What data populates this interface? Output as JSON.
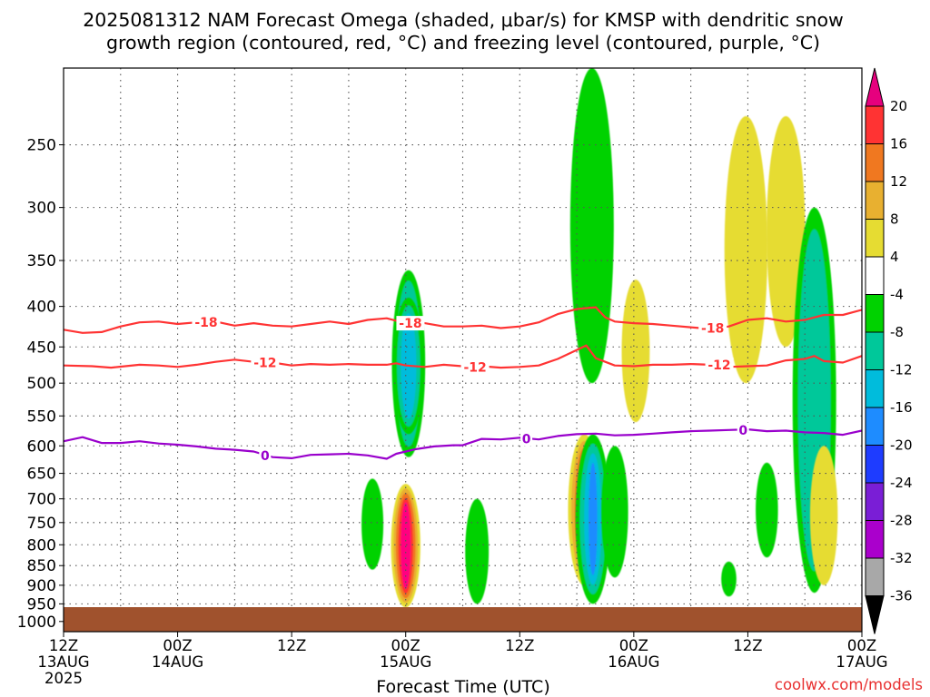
{
  "chart_data": {
    "type": "time-height cross section (filled contour + line contours)",
    "title_lines": [
      "2025081312 NAM Forecast Omega (shaded, μbar/s) for KMSP with dendritic snow",
      "growth region (contoured, red, °C) and freezing level (contoured, purple, °C)"
    ],
    "xlabel": "Forecast Time (UTC)",
    "credit": "coolwx.com/models",
    "x_ticks": [
      {
        "hours": 0,
        "line1": "12Z",
        "line2": "13AUG",
        "line3": "2025"
      },
      {
        "hours": 12,
        "line1": "00Z",
        "line2": "14AUG",
        "line3": ""
      },
      {
        "hours": 24,
        "line1": "12Z",
        "line2": "",
        "line3": ""
      },
      {
        "hours": 36,
        "line1": "00Z",
        "line2": "15AUG",
        "line3": ""
      },
      {
        "hours": 48,
        "line1": "12Z",
        "line2": "",
        "line3": ""
      },
      {
        "hours": 60,
        "line1": "00Z",
        "line2": "16AUG",
        "line3": ""
      },
      {
        "hours": 72,
        "line1": "12Z",
        "line2": "",
        "line3": ""
      },
      {
        "hours": 84,
        "line1": "00Z",
        "line2": "17AUG",
        "line3": ""
      }
    ],
    "xlim_hours": [
      0,
      84
    ],
    "y_axis": {
      "ylabel": "",
      "scale": "log-pressure (inverted)",
      "units": "hPa",
      "ticks": [
        250,
        300,
        350,
        400,
        450,
        500,
        550,
        600,
        650,
        700,
        750,
        800,
        850,
        900,
        950,
        1000
      ],
      "ylim": [
        200,
        1030
      ]
    },
    "grid": true,
    "terrain": {
      "top_hpa": 980,
      "color": "#a0522d"
    },
    "colorbar": {
      "labels": [
        20,
        16,
        12,
        8,
        4,
        -4,
        -8,
        -12,
        -16,
        -20,
        -24,
        -28,
        -32,
        -36
      ],
      "colors": [
        "#ff0080",
        "#ff3333",
        "#f07820",
        "#e8b030",
        "#e6dc32",
        "#ffffff",
        "#00d200",
        "#00c89a",
        "#00bcdc",
        "#1e8cff",
        "#1e3cff",
        "#7a1ed6",
        "#aa00cc",
        "#a8a8a8"
      ],
      "top_arrow_color": "#e6007e",
      "bottom_arrow_color": "#000000"
    },
    "omega_legend_colors": {
      "pos4_8": "#e6dc32",
      "pos8_12": "#e8b030",
      "pos12_16": "#f07820",
      "pos16_20": "#ff3333",
      "pos20": "#ff0080",
      "neg4_8": "#00d200",
      "neg8_12": "#00c89a",
      "neg12_16": "#00bcdc",
      "neg16_20": "#1e8cff"
    },
    "omega_regions": [
      {
        "sign": "negative",
        "strength": -8,
        "center": [
          36.3,
          480
        ],
        "extent_hpa": [
          360,
          620
        ]
      },
      {
        "sign": "negative",
        "strength": -14,
        "center": [
          36.3,
          470
        ],
        "extent_hpa": [
          390,
          580
        ]
      },
      {
        "sign": "negative",
        "strength": -6,
        "center": [
          32.5,
          760
        ],
        "extent_hpa": [
          660,
          860
        ]
      },
      {
        "sign": "positive",
        "strength": 22,
        "center": [
          36.0,
          800
        ],
        "extent_hpa": [
          670,
          960
        ]
      },
      {
        "sign": "negative",
        "strength": -6,
        "center": [
          43.5,
          800
        ],
        "extent_hpa": [
          700,
          950
        ]
      },
      {
        "sign": "negative",
        "strength": -6,
        "center": [
          55.6,
          300
        ],
        "extent_hpa": [
          200,
          500
        ]
      },
      {
        "sign": "positive",
        "strength": 6,
        "center": [
          60.2,
          460
        ],
        "extent_hpa": [
          370,
          560
        ]
      },
      {
        "sign": "positive",
        "strength": 14,
        "center": [
          54.8,
          720
        ],
        "extent_hpa": [
          580,
          900
        ]
      },
      {
        "sign": "negative",
        "strength": -16,
        "center": [
          55.7,
          760
        ],
        "extent_hpa": [
          580,
          950
        ]
      },
      {
        "sign": "negative",
        "strength": -6,
        "center": [
          58.0,
          760
        ],
        "extent_hpa": [
          600,
          880
        ]
      },
      {
        "sign": "positive",
        "strength": 5,
        "center": [
          71.8,
          370
        ],
        "extent_hpa": [
          230,
          500
        ]
      },
      {
        "sign": "positive",
        "strength": 5,
        "center": [
          76.0,
          300
        ],
        "extent_hpa": [
          230,
          450
        ]
      },
      {
        "sign": "negative",
        "strength": -8,
        "center": [
          79.0,
          480
        ],
        "extent_hpa": [
          300,
          920
        ]
      },
      {
        "sign": "negative",
        "strength": -6,
        "center": [
          74.0,
          700
        ],
        "extent_hpa": [
          630,
          830
        ]
      },
      {
        "sign": "negative",
        "strength": -6,
        "center": [
          70.0,
          880
        ],
        "extent_hpa": [
          840,
          930
        ]
      },
      {
        "sign": "positive",
        "strength": 5,
        "center": [
          80.0,
          750
        ],
        "extent_hpa": [
          600,
          900
        ]
      }
    ],
    "temperature_contours": [
      {
        "level": -18,
        "label": "-18",
        "color": "#ff3333",
        "points": [
          [
            0,
            428
          ],
          [
            2,
            432
          ],
          [
            4,
            431
          ],
          [
            6,
            424
          ],
          [
            8,
            419
          ],
          [
            10,
            418
          ],
          [
            12,
            421
          ],
          [
            14,
            419
          ],
          [
            16,
            418
          ],
          [
            18,
            423
          ],
          [
            20,
            420
          ],
          [
            22,
            423
          ],
          [
            24,
            424
          ],
          [
            26,
            421
          ],
          [
            28,
            418
          ],
          [
            30,
            421
          ],
          [
            32,
            416
          ],
          [
            34,
            414
          ],
          [
            35,
            417
          ],
          [
            36,
            414
          ],
          [
            38,
            420
          ],
          [
            40,
            424
          ],
          [
            42,
            424
          ],
          [
            44,
            423
          ],
          [
            46,
            426
          ],
          [
            48,
            424
          ],
          [
            50,
            419
          ],
          [
            52,
            409
          ],
          [
            54,
            403
          ],
          [
            56,
            401
          ],
          [
            57,
            413
          ],
          [
            58,
            418
          ],
          [
            60,
            420
          ],
          [
            62,
            421
          ],
          [
            64,
            423
          ],
          [
            66,
            425
          ],
          [
            68,
            427
          ],
          [
            70,
            424
          ],
          [
            72,
            416
          ],
          [
            74,
            414
          ],
          [
            76,
            418
          ],
          [
            78,
            416
          ],
          [
            80,
            410
          ],
          [
            82,
            410
          ],
          [
            84,
            404
          ]
        ]
      },
      {
        "level": -12,
        "label": "-12",
        "color": "#ff3333",
        "points": [
          [
            0,
            475
          ],
          [
            3,
            476
          ],
          [
            5,
            478
          ],
          [
            8,
            474
          ],
          [
            10,
            475
          ],
          [
            12,
            477
          ],
          [
            14,
            474
          ],
          [
            16,
            470
          ],
          [
            18,
            467
          ],
          [
            20,
            470
          ],
          [
            22,
            471
          ],
          [
            24,
            475
          ],
          [
            26,
            473
          ],
          [
            28,
            474
          ],
          [
            30,
            473
          ],
          [
            32,
            474
          ],
          [
            34,
            474
          ],
          [
            35,
            472
          ],
          [
            36,
            475
          ],
          [
            38,
            477
          ],
          [
            40,
            474
          ],
          [
            42,
            476
          ],
          [
            44,
            476
          ],
          [
            46,
            478
          ],
          [
            48,
            477
          ],
          [
            50,
            475
          ],
          [
            52,
            466
          ],
          [
            54,
            454
          ],
          [
            55,
            448
          ],
          [
            56,
            465
          ],
          [
            58,
            475
          ],
          [
            60,
            476
          ],
          [
            62,
            474
          ],
          [
            64,
            474
          ],
          [
            66,
            473
          ],
          [
            68,
            474
          ],
          [
            70,
            477
          ],
          [
            72,
            476
          ],
          [
            74,
            475
          ],
          [
            76,
            468
          ],
          [
            78,
            466
          ],
          [
            79,
            462
          ],
          [
            80,
            469
          ],
          [
            82,
            471
          ],
          [
            84,
            462
          ]
        ]
      },
      {
        "level": 0,
        "label": "0",
        "color": "#9900cc",
        "points": [
          [
            0,
            592
          ],
          [
            2,
            585
          ],
          [
            4,
            595
          ],
          [
            6,
            595
          ],
          [
            8,
            592
          ],
          [
            10,
            596
          ],
          [
            12,
            598
          ],
          [
            14,
            601
          ],
          [
            16,
            605
          ],
          [
            18,
            607
          ],
          [
            20,
            610
          ],
          [
            22,
            620
          ],
          [
            24,
            622
          ],
          [
            26,
            616
          ],
          [
            28,
            615
          ],
          [
            30,
            614
          ],
          [
            32,
            617
          ],
          [
            34,
            623
          ],
          [
            35,
            614
          ],
          [
            37,
            606
          ],
          [
            39,
            601
          ],
          [
            41,
            599
          ],
          [
            42,
            599
          ],
          [
            44,
            588
          ],
          [
            46,
            589
          ],
          [
            48,
            586
          ],
          [
            50,
            589
          ],
          [
            52,
            583
          ],
          [
            54,
            580
          ],
          [
            56,
            579
          ],
          [
            58,
            582
          ],
          [
            60,
            581
          ],
          [
            62,
            579
          ],
          [
            64,
            577
          ],
          [
            66,
            575
          ],
          [
            68,
            574
          ],
          [
            70,
            573
          ],
          [
            72,
            572
          ],
          [
            74,
            575
          ],
          [
            76,
            574
          ],
          [
            78,
            577
          ],
          [
            80,
            578
          ],
          [
            82,
            581
          ],
          [
            84,
            574
          ]
        ]
      }
    ],
    "contour_label_positions": [
      {
        "label": "-18",
        "hours": 15.0,
        "hpa": 419
      },
      {
        "label": "-18",
        "hours": 36.5,
        "hpa": 420
      },
      {
        "label": "-18",
        "hours": 68.3,
        "hpa": 426
      },
      {
        "label": "-12",
        "hours": 21.2,
        "hpa": 471
      },
      {
        "label": "-12",
        "hours": 43.3,
        "hpa": 477
      },
      {
        "label": "-12",
        "hours": 69.0,
        "hpa": 474
      },
      {
        "label": "0",
        "hours": 21.2,
        "hpa": 617
      },
      {
        "label": "0",
        "hours": 48.7,
        "hpa": 588
      },
      {
        "label": "0",
        "hours": 71.5,
        "hpa": 573
      }
    ]
  }
}
